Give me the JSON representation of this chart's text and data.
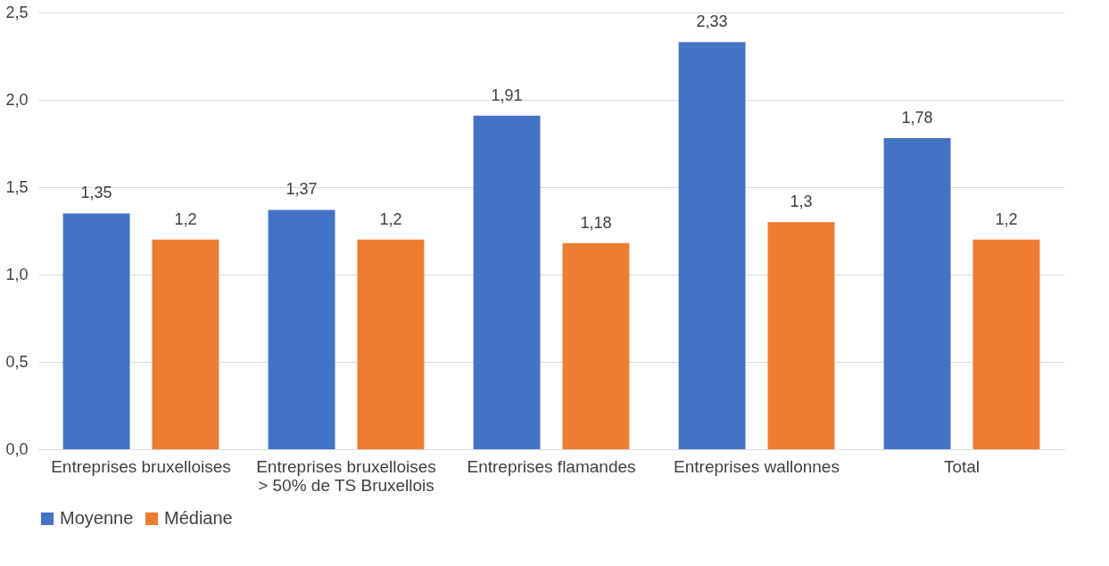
{
  "chart_data": {
    "type": "bar",
    "categories": [
      "Entreprises bruxelloises",
      "Entreprises bruxelloises\n> 50% de TS Bruxellois",
      "Entreprises flamandes",
      "Entreprises wallonnes",
      "Total"
    ],
    "series": [
      {
        "name": "Moyenne",
        "color": "#4472c4",
        "values": [
          1.35,
          1.37,
          1.91,
          2.33,
          1.78
        ],
        "value_labels": [
          "1,35",
          "1,37",
          "1,91",
          "2,33",
          "1,78"
        ]
      },
      {
        "name": "Médiane",
        "color": "#ed7d31",
        "values": [
          1.2,
          1.2,
          1.18,
          1.3,
          1.2
        ],
        "value_labels": [
          "1,2",
          "1,2",
          "1,18",
          "1,3",
          "1,2"
        ]
      }
    ],
    "ylim": [
      0,
      2.5
    ],
    "yticks": [
      {
        "value": 0,
        "label": "0,0"
      },
      {
        "value": 0.5,
        "label": "0,5"
      },
      {
        "value": 1.0,
        "label": "1,0"
      },
      {
        "value": 1.5,
        "label": "1,5"
      },
      {
        "value": 2.0,
        "label": "2,0"
      },
      {
        "value": 2.5,
        "label": "2,5"
      }
    ],
    "grid": "y",
    "legend": "bottom"
  }
}
